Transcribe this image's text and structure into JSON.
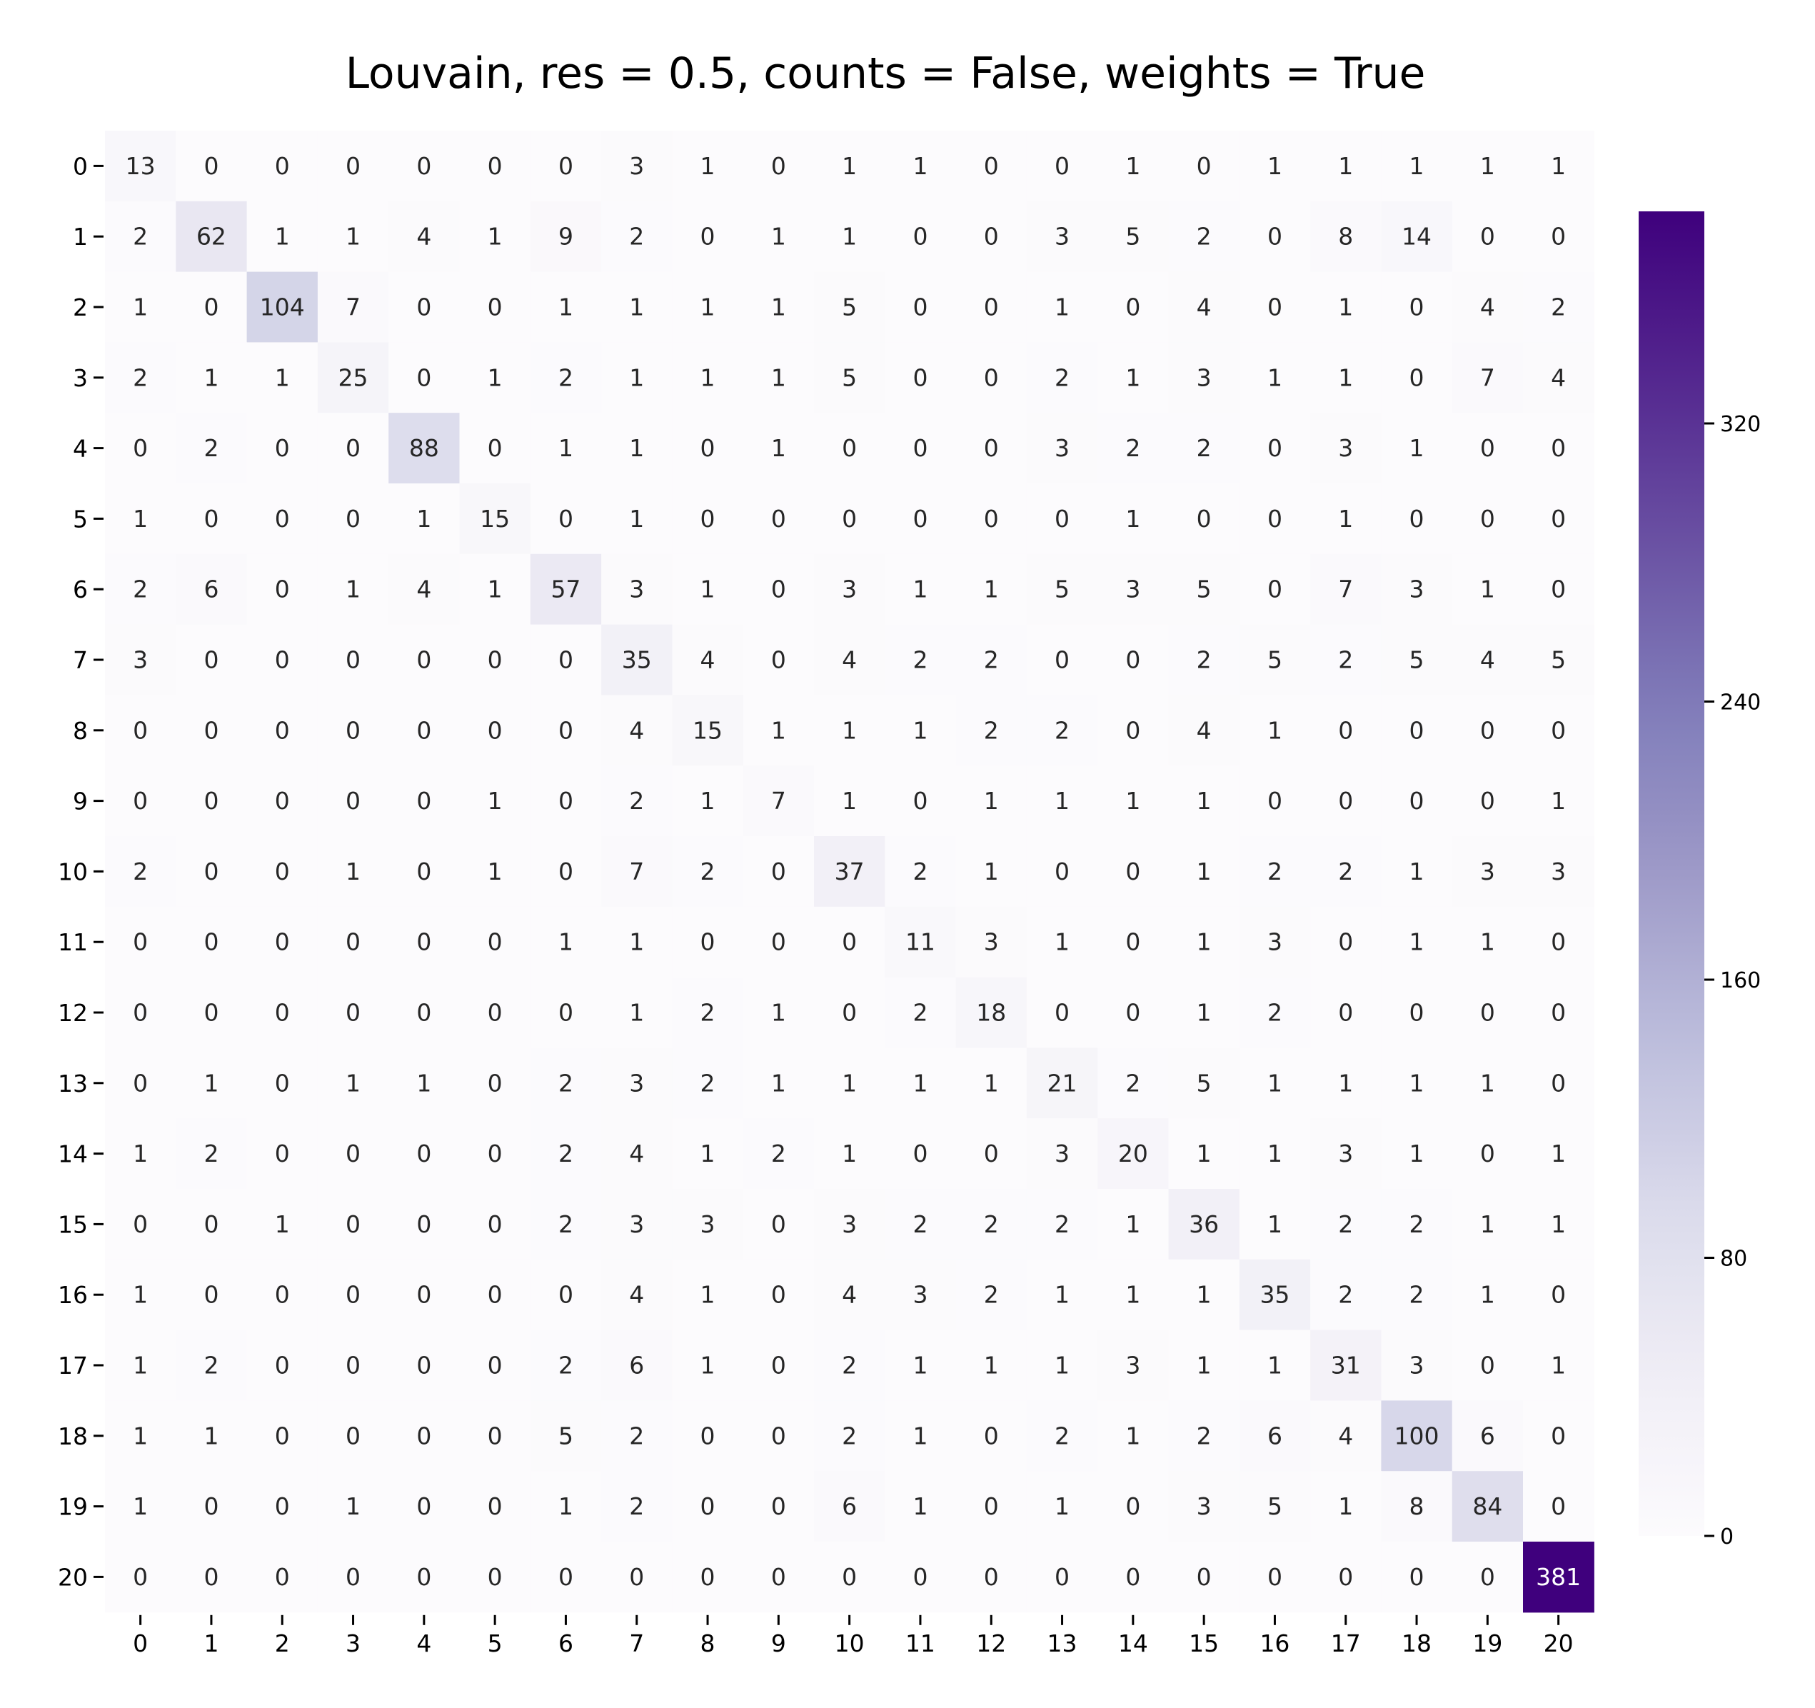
{
  "chart_data": {
    "type": "heatmap",
    "title": "Louvain, res = 0.5, counts = False, weights = True",
    "xlabel": "",
    "ylabel": "",
    "x_labels": [
      "0",
      "1",
      "2",
      "3",
      "4",
      "5",
      "6",
      "7",
      "8",
      "9",
      "10",
      "11",
      "12",
      "13",
      "14",
      "15",
      "16",
      "17",
      "18",
      "19",
      "20"
    ],
    "y_labels": [
      "0",
      "1",
      "2",
      "3",
      "4",
      "5",
      "6",
      "7",
      "8",
      "9",
      "10",
      "11",
      "12",
      "13",
      "14",
      "15",
      "16",
      "17",
      "18",
      "19",
      "20"
    ],
    "values": [
      [
        13,
        0,
        0,
        0,
        0,
        0,
        0,
        3,
        1,
        0,
        1,
        1,
        0,
        0,
        1,
        0,
        1,
        1,
        1,
        1,
        1
      ],
      [
        2,
        62,
        1,
        1,
        4,
        1,
        9,
        2,
        0,
        1,
        1,
        0,
        0,
        3,
        5,
        2,
        0,
        8,
        14,
        0,
        0
      ],
      [
        1,
        0,
        104,
        7,
        0,
        0,
        1,
        1,
        1,
        1,
        5,
        0,
        0,
        1,
        0,
        4,
        0,
        1,
        0,
        4,
        2
      ],
      [
        2,
        1,
        1,
        25,
        0,
        1,
        2,
        1,
        1,
        1,
        5,
        0,
        0,
        2,
        1,
        3,
        1,
        1,
        0,
        7,
        4
      ],
      [
        0,
        2,
        0,
        0,
        88,
        0,
        1,
        1,
        0,
        1,
        0,
        0,
        0,
        3,
        2,
        2,
        0,
        3,
        1,
        0,
        0
      ],
      [
        1,
        0,
        0,
        0,
        1,
        15,
        0,
        1,
        0,
        0,
        0,
        0,
        0,
        0,
        1,
        0,
        0,
        1,
        0,
        0,
        0
      ],
      [
        2,
        6,
        0,
        1,
        4,
        1,
        57,
        3,
        1,
        0,
        3,
        1,
        1,
        5,
        3,
        5,
        0,
        7,
        3,
        1,
        0
      ],
      [
        3,
        0,
        0,
        0,
        0,
        0,
        0,
        35,
        4,
        0,
        4,
        2,
        2,
        0,
        0,
        2,
        5,
        2,
        5,
        4,
        5
      ],
      [
        0,
        0,
        0,
        0,
        0,
        0,
        0,
        4,
        15,
        1,
        1,
        1,
        2,
        2,
        0,
        4,
        1,
        0,
        0,
        0,
        0
      ],
      [
        0,
        0,
        0,
        0,
        0,
        1,
        0,
        2,
        1,
        7,
        1,
        0,
        1,
        1,
        1,
        1,
        0,
        0,
        0,
        0,
        1
      ],
      [
        2,
        0,
        0,
        1,
        0,
        1,
        0,
        7,
        2,
        0,
        37,
        2,
        1,
        0,
        0,
        1,
        2,
        2,
        1,
        3,
        3
      ],
      [
        0,
        0,
        0,
        0,
        0,
        0,
        1,
        1,
        0,
        0,
        0,
        11,
        3,
        1,
        0,
        1,
        3,
        0,
        1,
        1,
        0
      ],
      [
        0,
        0,
        0,
        0,
        0,
        0,
        0,
        1,
        2,
        1,
        0,
        2,
        18,
        0,
        0,
        1,
        2,
        0,
        0,
        0,
        0
      ],
      [
        0,
        1,
        0,
        1,
        1,
        0,
        2,
        3,
        2,
        1,
        1,
        1,
        1,
        21,
        2,
        5,
        1,
        1,
        1,
        1,
        0
      ],
      [
        1,
        2,
        0,
        0,
        0,
        0,
        2,
        4,
        1,
        2,
        1,
        0,
        0,
        3,
        20,
        1,
        1,
        3,
        1,
        0,
        1
      ],
      [
        0,
        0,
        1,
        0,
        0,
        0,
        2,
        3,
        3,
        0,
        3,
        2,
        2,
        2,
        1,
        36,
        1,
        2,
        2,
        1,
        1
      ],
      [
        1,
        0,
        0,
        0,
        0,
        0,
        0,
        4,
        1,
        0,
        4,
        3,
        2,
        1,
        1,
        1,
        35,
        2,
        2,
        1,
        0
      ],
      [
        1,
        2,
        0,
        0,
        0,
        0,
        2,
        6,
        1,
        0,
        2,
        1,
        1,
        1,
        3,
        1,
        1,
        31,
        3,
        0,
        1
      ],
      [
        1,
        1,
        0,
        0,
        0,
        0,
        5,
        2,
        0,
        0,
        2,
        1,
        0,
        2,
        1,
        2,
        6,
        4,
        100,
        6,
        0
      ],
      [
        1,
        0,
        0,
        1,
        0,
        0,
        1,
        2,
        0,
        0,
        6,
        1,
        0,
        1,
        0,
        3,
        5,
        1,
        8,
        84,
        0
      ],
      [
        0,
        0,
        0,
        0,
        0,
        0,
        0,
        0,
        0,
        0,
        0,
        0,
        0,
        0,
        0,
        0,
        0,
        0,
        0,
        0,
        381
      ]
    ],
    "colormap": "Purples",
    "color_low": "#fcfbfd",
    "color_high": "#3f007d",
    "vmin": 0,
    "vmax": 381,
    "colorbar": {
      "ticks": [
        0,
        80,
        160,
        240,
        320
      ],
      "tick_labels": [
        "0",
        "80",
        "160",
        "240",
        "320"
      ],
      "position": "right"
    },
    "annotations": true,
    "grid": false
  }
}
